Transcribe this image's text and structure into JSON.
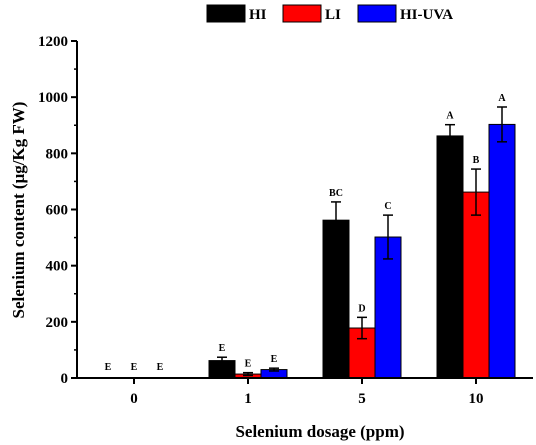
{
  "chart_data": {
    "type": "bar",
    "xlabel": "Selenium dosage (ppm)",
    "ylabel": "Selenium content (μg/Kg FW)",
    "ylim": [
      0,
      1200
    ],
    "yticks": [
      0,
      200,
      400,
      600,
      800,
      1000,
      1200
    ],
    "categories": [
      "0",
      "1",
      "5",
      "10"
    ],
    "legend_position": "top",
    "grid": false,
    "series": [
      {
        "name": "HI",
        "color": "#000000",
        "values": [
          0,
          62,
          562,
          862
        ],
        "errors": [
          0,
          12,
          65,
          40
        ],
        "labels": [
          "E",
          "E",
          "BC",
          "A"
        ]
      },
      {
        "name": "LI",
        "color": "#ff0000",
        "values": [
          0,
          14,
          178,
          662
        ],
        "errors": [
          0,
          5,
          38,
          82
        ],
        "labels": [
          "E",
          "E",
          "D",
          "B"
        ]
      },
      {
        "name": "HI-UVA",
        "color": "#0000ff",
        "values": [
          0,
          30,
          502,
          903
        ],
        "errors": [
          0,
          5,
          78,
          62
        ],
        "labels": [
          "E",
          "E",
          "C",
          "A"
        ]
      }
    ]
  }
}
